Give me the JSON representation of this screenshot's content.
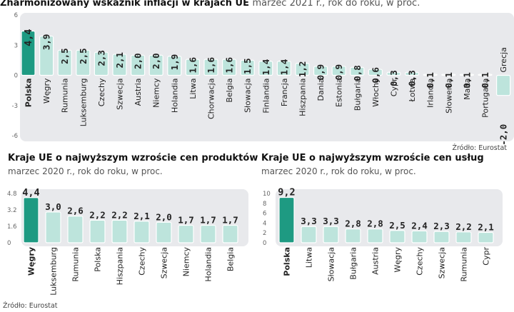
{
  "colors": {
    "highlight": "#1e9a82",
    "bar": "#bde4dc",
    "bar_edge": "#ffffff",
    "panel": "#e8e9ec"
  },
  "top": {
    "title": "Zharmonizowany wskaźnik inflacji w krajach UE",
    "subtitle": "marzec 2021 r., rok do roku, w proc.",
    "source": "Źródło: Eurostat"
  },
  "left": {
    "title": "Kraje UE o najwyższym wzroście cen produktów",
    "subtitle": "marzec 2020 r., rok do roku, w proc.",
    "source": "Źródło: Eurostat"
  },
  "right": {
    "title": "Kraje UE o najwyższym wzroście cen usług",
    "subtitle": "marzec 2020 r., rok do roku, w proc."
  },
  "chart_data": [
    {
      "type": "bar",
      "title": "Zharmonizowany wskaźnik inflacji w krajach UE",
      "highlight": "Polska",
      "categories": [
        "Polska",
        "Węgry",
        "Rumunia",
        "Luksemburg",
        "Czechy",
        "Szwecja",
        "Austria",
        "Niemcy",
        "Holandia",
        "Litwa",
        "Chorwacja",
        "Belgia",
        "Słowacja",
        "Finlandia",
        "Francja",
        "Hiszpania",
        "Dania",
        "Estonia",
        "Bułgaria",
        "Włochy",
        "Cypr",
        "Łotwa",
        "Irlandia",
        "Słowenia",
        "Malta",
        "Portugalia",
        "Grecja"
      ],
      "values": [
        4.4,
        3.9,
        2.5,
        2.5,
        2.3,
        2.1,
        2.0,
        2.0,
        1.9,
        1.6,
        1.6,
        1.6,
        1.5,
        1.4,
        1.4,
        1.2,
        0.9,
        0.9,
        0.8,
        0.6,
        0.3,
        0.3,
        0.1,
        0.1,
        0.1,
        0.1,
        -2.0
      ],
      "value_labels": [
        "4,4",
        "3,9",
        "2,5",
        "2,5",
        "2,3",
        "2,1",
        "2,0",
        "2,0",
        "1,9",
        "1,6",
        "1,6",
        "1,6",
        "1,5",
        "1,4",
        "1,4",
        "1,2",
        "0,9",
        "0,9",
        "0,8",
        "0,6",
        "0,3",
        "0,3",
        "0,1",
        "0,1",
        "0,1",
        "0,1",
        "-2,0"
      ],
      "yticks": [
        6,
        3,
        0,
        -3,
        -6
      ],
      "ytick_labels": [
        "6",
        "3",
        "0",
        "-3",
        "-6"
      ],
      "ylim": [
        -6,
        6
      ]
    },
    {
      "type": "bar",
      "title": "Kraje UE o najwyższym wzroście cen produktów",
      "highlight": "Węgry",
      "categories": [
        "Węgry",
        "Luksemburg",
        "Rumunia",
        "Polska",
        "Hiszpania",
        "Czechy",
        "Szwecja",
        "Niemcy",
        "Holandia",
        "Belgia"
      ],
      "values": [
        4.4,
        3.0,
        2.6,
        2.2,
        2.2,
        2.1,
        2.0,
        1.7,
        1.7,
        1.7
      ],
      "value_labels": [
        "4,4",
        "3,0",
        "2,6",
        "2,2",
        "2,2",
        "2,1",
        "2,0",
        "1,7",
        "1,7",
        "1,7"
      ],
      "yticks": [
        4.8,
        3.2,
        1.6,
        0
      ],
      "ytick_labels": [
        "4.8",
        "3.2",
        "1.6",
        "0"
      ],
      "ylim": [
        0,
        4.8
      ]
    },
    {
      "type": "bar",
      "title": "Kraje UE o najwyższym wzroście cen usług",
      "highlight": "Polska",
      "categories": [
        "Polska",
        "Litwa",
        "Słowacja",
        "Bułgaria",
        "Austria",
        "Węgry",
        "Czechy",
        "Szwecja",
        "Rumunia",
        "Cypr"
      ],
      "values": [
        9.2,
        3.3,
        3.3,
        2.8,
        2.8,
        2.5,
        2.4,
        2.3,
        2.2,
        2.1
      ],
      "value_labels": [
        "9,2",
        "3,3",
        "3,3",
        "2,8",
        "2,8",
        "2,5",
        "2,4",
        "2,3",
        "2,2",
        "2,1"
      ],
      "yticks": [
        10,
        8,
        6,
        4,
        2,
        0
      ],
      "ytick_labels": [
        "10",
        "8",
        "6",
        "4",
        "2",
        "0"
      ],
      "ylim": [
        0,
        10
      ]
    }
  ]
}
